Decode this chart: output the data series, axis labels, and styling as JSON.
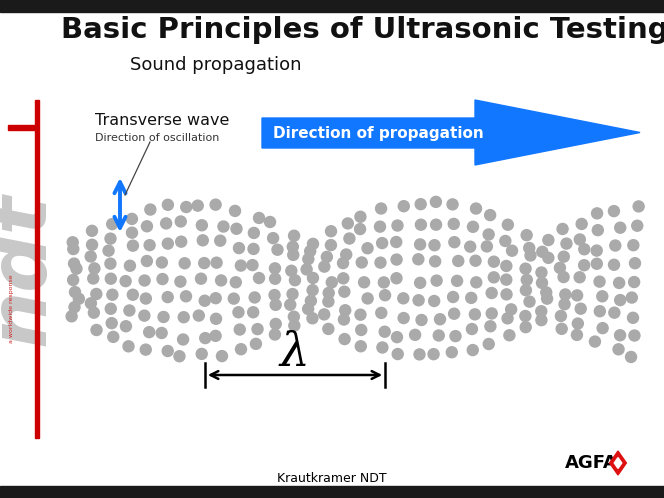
{
  "title": "Basic Principles of Ultrasonic Testing",
  "subtitle": "Sound propagation",
  "bg_color": "#ffffff",
  "title_color": "#111111",
  "dot_color": "#aaaaaa",
  "blue_color": "#1177ff",
  "red_color": "#cc0000",
  "text_transverse": "Transverse wave",
  "text_oscillation": "Direction of oscillation",
  "text_propagation": "Direction of propagation",
  "lambda_label": "λ",
  "agfa_text": "AGFA",
  "krautkramer_text": "Krautkramer NDT",
  "figure_width": 6.64,
  "figure_height": 4.98,
  "dpi": 100
}
